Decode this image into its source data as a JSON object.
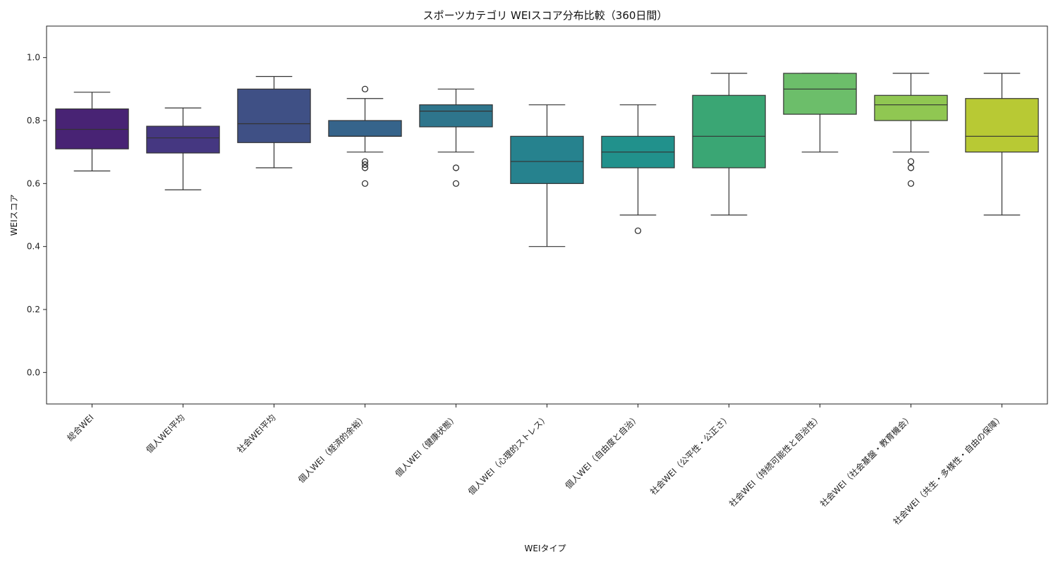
{
  "chart_data": {
    "type": "box",
    "title": "スポーツカテゴリ WEIスコア分布比較（360日間）",
    "xlabel": "WEIタイプ",
    "ylabel": "WEIスコア",
    "ylim": [
      -0.1,
      1.1
    ],
    "yticks": [
      0.0,
      0.2,
      0.4,
      0.6,
      0.8,
      1.0
    ],
    "ytick_labels": [
      "0.0",
      "0.2",
      "0.4",
      "0.6",
      "0.8",
      "1.0"
    ],
    "grid": false,
    "legend": "none",
    "categories": [
      "総合WEI",
      "個人WEI平均",
      "社会WEI平均",
      "個人WEI（経済的余裕）",
      "個人WEI（健康状態）",
      "個人WEI（心理的ストレス）",
      "個人WEI（自由度と自治）",
      "社会WEI（公平性・公正さ）",
      "社会WEI（持続可能性と自治性）",
      "社会WEI（社会基盤・教育機会）",
      "社会WEI（共生・多様性・自由の保障）"
    ],
    "boxes": [
      {
        "whislo": 0.64,
        "q1": 0.71,
        "med": 0.772,
        "q3": 0.837,
        "whishi": 0.89,
        "fliers": [],
        "color": "#482374"
      },
      {
        "whislo": 0.58,
        "q1": 0.697,
        "med": 0.745,
        "q3": 0.782,
        "whishi": 0.84,
        "fliers": [],
        "color": "#453781"
      },
      {
        "whislo": 0.65,
        "q1": 0.73,
        "med": 0.79,
        "q3": 0.9,
        "whishi": 0.94,
        "fliers": [],
        "color": "#3f5085"
      },
      {
        "whislo": 0.7,
        "q1": 0.75,
        "med": 0.75,
        "q3": 0.8,
        "whishi": 0.87,
        "fliers": [
          0.9,
          0.67,
          0.66,
          0.65,
          0.6
        ],
        "color": "#36648b"
      },
      {
        "whislo": 0.7,
        "q1": 0.78,
        "med": 0.83,
        "q3": 0.85,
        "whishi": 0.9,
        "fliers": [
          0.65,
          0.6
        ],
        "color": "#2e758c"
      },
      {
        "whislo": 0.4,
        "q1": 0.6,
        "med": 0.67,
        "q3": 0.75,
        "whishi": 0.85,
        "fliers": [],
        "color": "#26828e"
      },
      {
        "whislo": 0.5,
        "q1": 0.65,
        "med": 0.7,
        "q3": 0.75,
        "whishi": 0.85,
        "fliers": [
          0.45
        ],
        "color": "#21918c"
      },
      {
        "whislo": 0.5,
        "q1": 0.65,
        "med": 0.75,
        "q3": 0.88,
        "whishi": 0.95,
        "fliers": [],
        "color": "#3aa674"
      },
      {
        "whislo": 0.7,
        "q1": 0.82,
        "med": 0.9,
        "q3": 0.95,
        "whishi": 0.95,
        "fliers": [],
        "color": "#6cbe6a"
      },
      {
        "whislo": 0.7,
        "q1": 0.8,
        "med": 0.85,
        "q3": 0.88,
        "whishi": 0.95,
        "fliers": [
          0.67,
          0.65,
          0.6
        ],
        "color": "#90c752"
      },
      {
        "whislo": 0.5,
        "q1": 0.7,
        "med": 0.75,
        "q3": 0.87,
        "whishi": 0.95,
        "fliers": [],
        "color": "#b8c934"
      }
    ]
  }
}
